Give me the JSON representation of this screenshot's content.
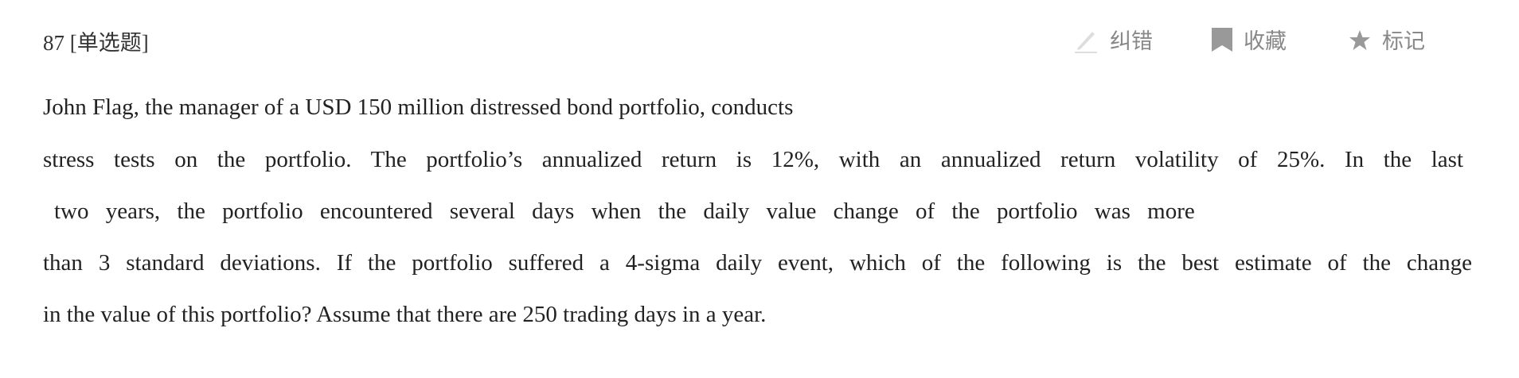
{
  "question": {
    "number": "87",
    "type": "[单选题]",
    "lines": [
      "John Flag, the manager of a USD 150 million distressed bond portfolio, conducts",
      "stress tests on the portfolio. The portfolio’s annualized return is 12%, with an annualized return volatility of 25%. In the last",
      "two years, the portfolio encountered several days when the daily value change of the portfolio was more",
      "than 3 standard deviations. If the portfolio suffered a 4-sigma daily event, which of the following is the best estimate of the change",
      "in the value of this portfolio? Assume that there are 250 trading days in a year."
    ]
  },
  "actions": [
    {
      "label": "纠错",
      "icon": "pencil-icon"
    },
    {
      "label": "收藏",
      "icon": "bookmark-icon"
    },
    {
      "label": "标记",
      "icon": "star-icon"
    }
  ],
  "colors": {
    "action": "#888888",
    "icon": "#999999",
    "text": "#222222"
  }
}
